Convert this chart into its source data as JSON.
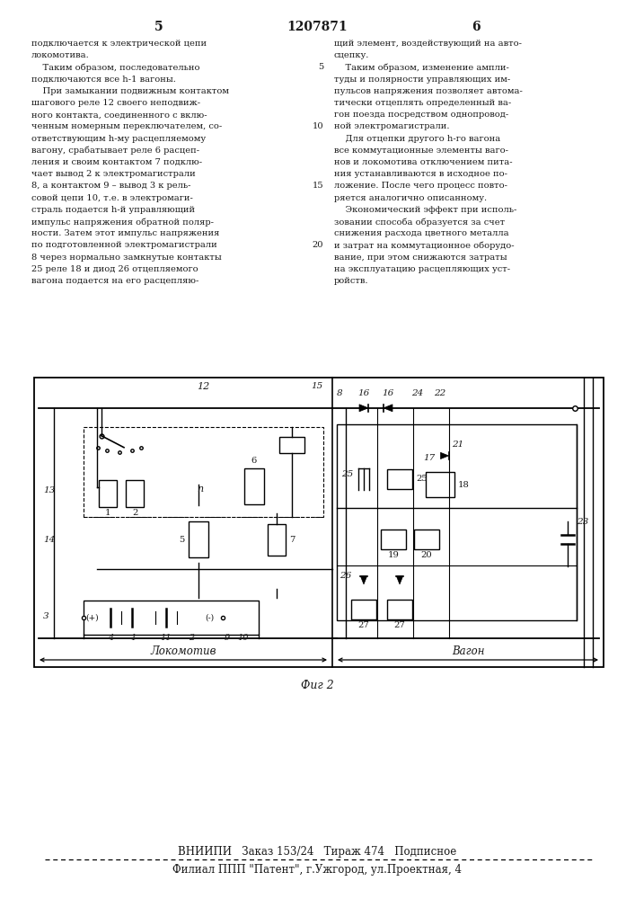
{
  "page_num_left": "5",
  "patent_num": "1207871",
  "page_num_right": "6",
  "col_left": [
    "подключается к электрической цепи",
    "локомотива.",
    "    Таким образом, последовательно",
    "подключаются все h-1 вагоны.",
    "    При замыкании подвижным контактом",
    "шагового реле 12 своего неподвиж-",
    "ного контакта, соединенного с вклю-",
    "ченным номерным переключателем, со-",
    "ответствующим h-му расцепляемому",
    "вагону, срабатывает реле 6 расцеп-",
    "ления и своим контактом 7 подклю-",
    "чает вывод 2 к электромагистрали",
    "8, а контактом 9 – вывод 3 к рель-",
    "совой цепи 10, т.е. в электромаги-",
    "страль подается h-й управляющий",
    "импульс напряжения обратной поляр-",
    "ности. Затем этот импульс напряжения",
    "по подготовленной электромагистрали",
    "8 через нормально замкнутые контакты",
    "25 реле 18 и диод 26 отцепляемого",
    "вагона подается на его расцепляю-"
  ],
  "col_right": [
    "щий элемент, воздействующий на авто-",
    "сцепку.",
    "    Таким образом, изменение ампли-",
    "туды и полярности управляющих им-",
    "пульсов напряжения позволяет автома-",
    "тически отцеплять определенный ва-",
    "гон поезда посредством однопровод-",
    "ной электромагистрали.",
    "    Для отцепки другого h-го вагона",
    "все коммутационные элементы ваго-",
    "нов и локомотива отключением пита-",
    "ния устанавливаются в исходное по-",
    "ложение. После чего процесс повто-",
    "ряется аналогично описанному.",
    "    Экономический эффект при исполь-",
    "зовании способа образуется за счет",
    "снижения расхода цветного металла",
    "и затрат на коммутационное оборудо-",
    "вание, при этом снижаются затраты",
    "на эксплуатацию расцепляющих уст-",
    "ройств."
  ],
  "line_nums": {
    "2": "5",
    "7": "10",
    "12": "15",
    "17": "20"
  },
  "fig_label": "Фиг 2",
  "footer1": "ВНИИПИ   Заказ 153/24   Тираж 474   Подписное",
  "footer2": "Филиал ППП \"Патент\", г.Ужгород, ул.Проектная, 4",
  "bg": "#ffffff",
  "fg": "#1a1a1a"
}
